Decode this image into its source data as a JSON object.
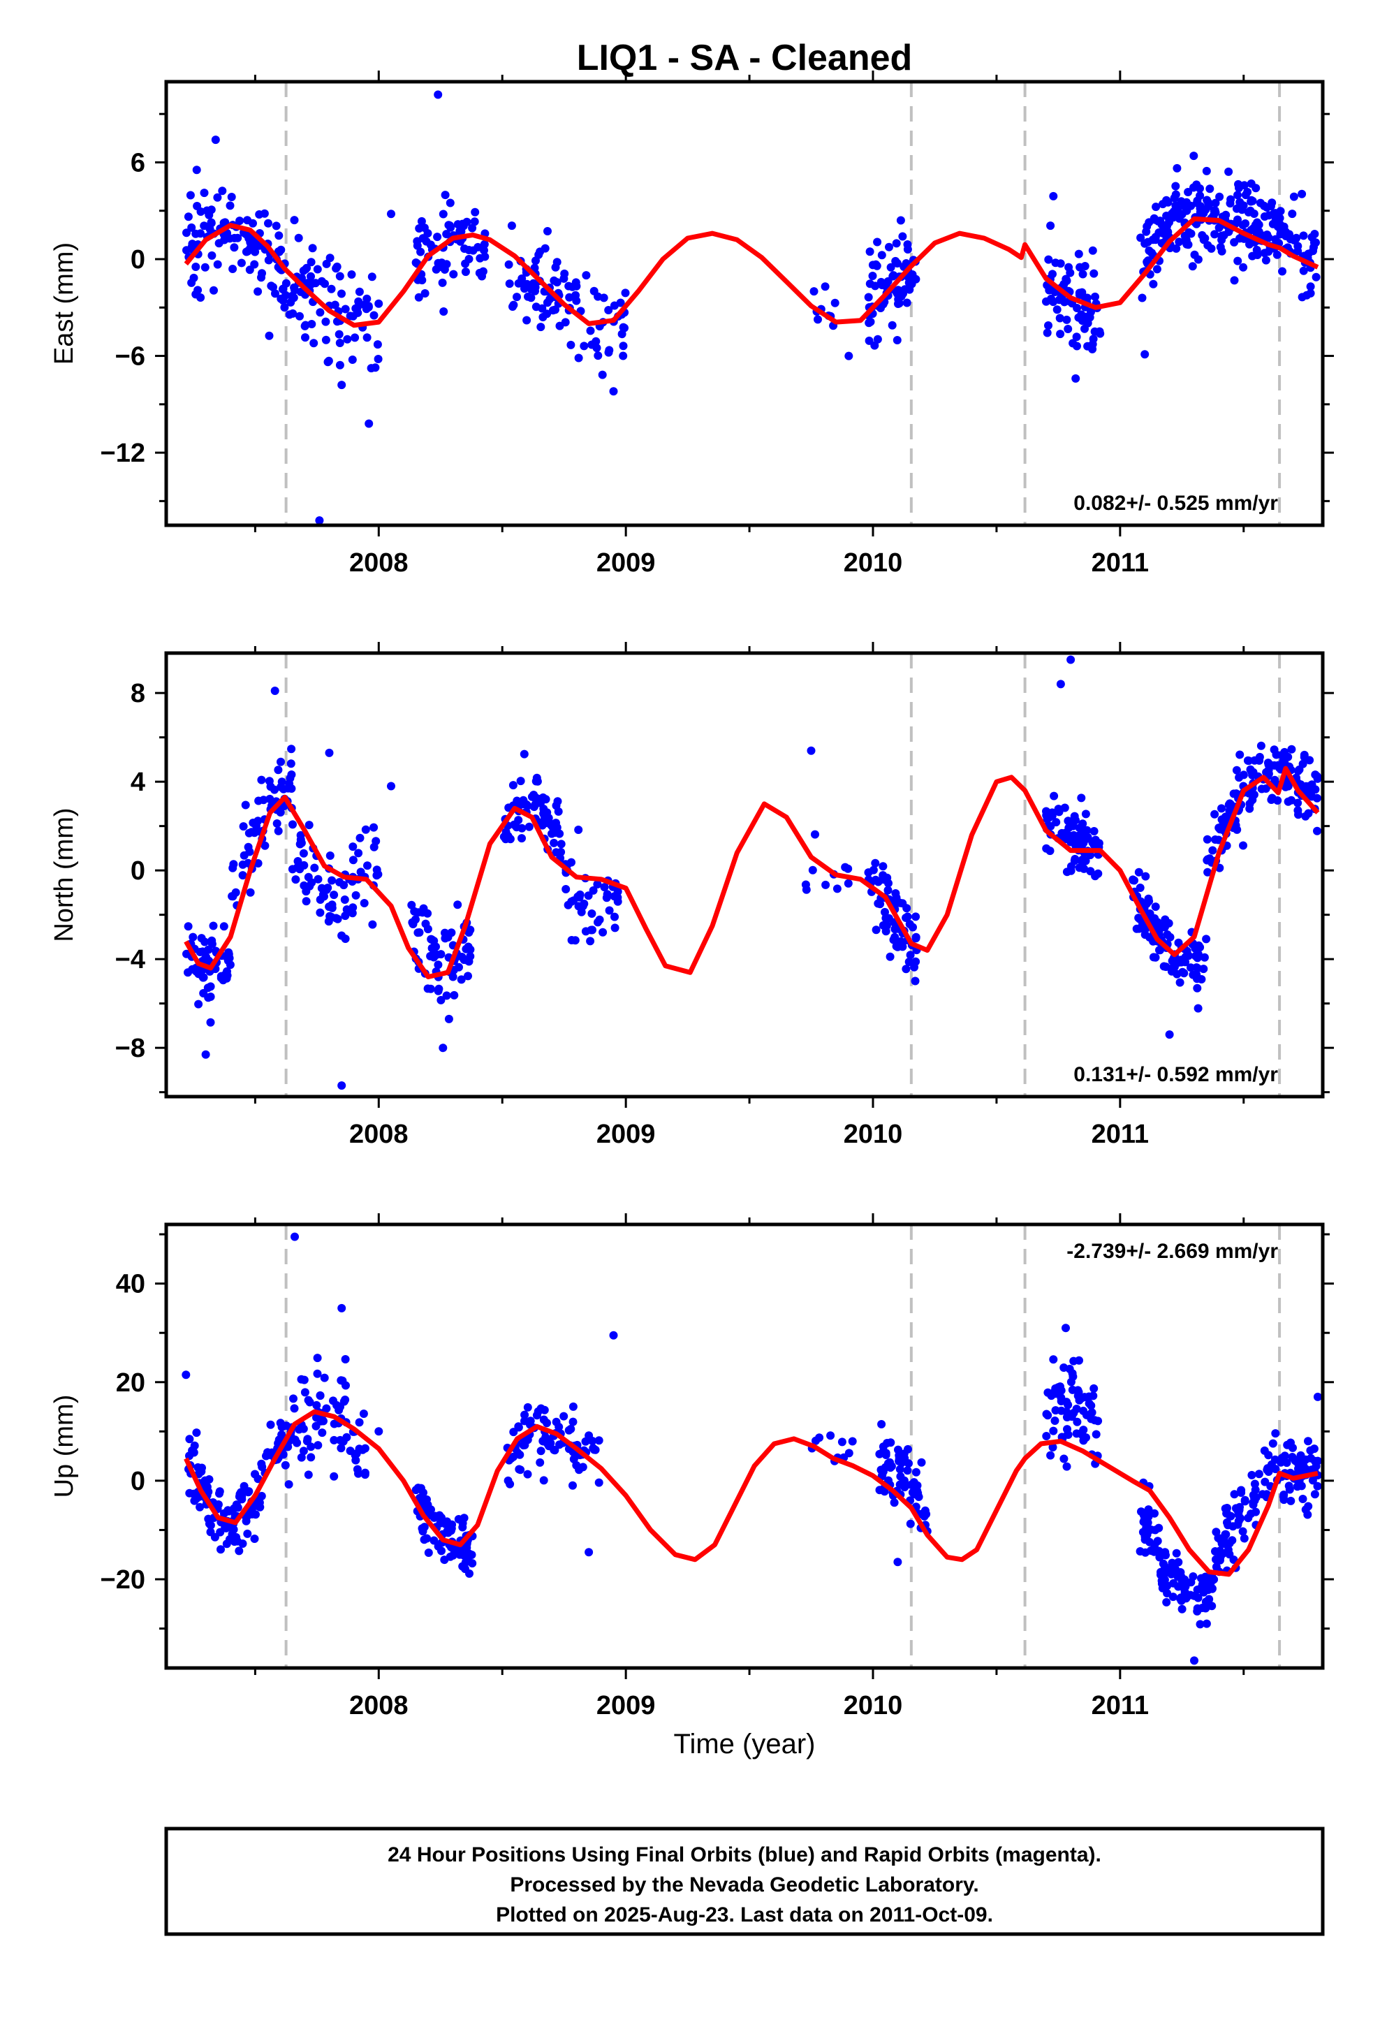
{
  "chart_data": {
    "type": "scatter",
    "title": "LIQ1  - SA - Cleaned",
    "xlabel": "Time (year)",
    "xlim": [
      2007.14,
      2011.82
    ],
    "x_ticks": [
      2008,
      2009,
      2010,
      2011
    ],
    "x_tick_labels": [
      "2008",
      "2009",
      "2010",
      "2011"
    ],
    "event_lines": [
      2007.625,
      2010.155,
      2010.615,
      2011.645
    ],
    "colors": {
      "data": "#0000ff",
      "model": "#ff0000",
      "event": "#c0c0c0"
    },
    "grid": false,
    "panels": [
      {
        "name": "east",
        "ylabel": "East (mm)",
        "ylim": [
          -16.5,
          11
        ],
        "y_ticks": [
          -12,
          -6,
          0,
          6
        ],
        "y_tick_labels": [
          "−12",
          "−6",
          "0",
          "6"
        ],
        "rate_label": "0.082+/- 0.525 mm/yr",
        "rate_position": "bottom-right",
        "model_line": {
          "x": [
            2007.22,
            2007.3,
            2007.4,
            2007.48,
            2007.55,
            2007.62,
            2007.7,
            2007.8,
            2007.9,
            2008.0,
            2008.1,
            2008.2,
            2008.3,
            2008.38,
            2008.45,
            2008.55,
            2008.65,
            2008.75,
            2008.85,
            2008.95,
            2009.05,
            2009.15,
            2009.25,
            2009.35,
            2009.45,
            2009.55,
            2009.65,
            2009.75,
            2009.85,
            2009.95,
            2010.05,
            2010.15,
            2010.25,
            2010.35,
            2010.45,
            2010.55,
            2010.6,
            2010.615,
            2010.7,
            2010.8,
            2010.9,
            2011.0,
            2011.1,
            2011.2,
            2011.3,
            2011.4,
            2011.5,
            2011.6,
            2011.645,
            2011.7,
            2011.8
          ],
          "y": [
            -0.3,
            1.2,
            2.1,
            1.8,
            0.8,
            -0.6,
            -1.8,
            -3.2,
            -4.1,
            -3.9,
            -2.0,
            0.2,
            1.3,
            1.5,
            1.2,
            0.2,
            -1.3,
            -2.8,
            -4.0,
            -3.8,
            -2.0,
            0.0,
            1.3,
            1.6,
            1.2,
            0.1,
            -1.4,
            -2.9,
            -3.9,
            -3.8,
            -2.2,
            -0.5,
            1.0,
            1.6,
            1.3,
            0.6,
            0.1,
            0.9,
            -1.2,
            -2.4,
            -3.0,
            -2.7,
            -0.9,
            1.1,
            2.5,
            2.4,
            1.6,
            0.9,
            0.7,
            0.2,
            -0.5
          ]
        },
        "clusters": [
          {
            "x": [
              2007.22,
              2007.62
            ],
            "center": [
              0.3,
              2.2,
              1.2,
              -0.8
            ],
            "spread": 2.0,
            "count": 110
          },
          {
            "x": [
              2007.62,
              2008.0
            ],
            "center": [
              -0.8,
              -2.2,
              -3.8,
              -4.2
            ],
            "spread": 2.4,
            "count": 85
          },
          {
            "x": [
              2008.15,
              2008.43
            ],
            "center": [
              0.2,
              1.2,
              1.4
            ],
            "spread": 1.8,
            "count": 70
          },
          {
            "x": [
              2008.52,
              2009.0
            ],
            "center": [
              -0.6,
              -2.2,
              -3.8,
              -4.6
            ],
            "spread": 1.9,
            "count": 95
          },
          {
            "x": [
              2009.72,
              2009.92
            ],
            "center": [
              -2.4,
              -3.6
            ],
            "spread": 1.3,
            "count": 10
          },
          {
            "x": [
              2009.98,
              2010.18
            ],
            "center": [
              -2.6,
              -1.4,
              0.0
            ],
            "spread": 2.0,
            "count": 70
          },
          {
            "x": [
              2010.7,
              2010.92
            ],
            "center": [
              -1.4,
              -2.8,
              -3.4
            ],
            "spread": 2.2,
            "count": 75
          },
          {
            "x": [
              2011.08,
              2011.8
            ],
            "center": [
              0.4,
              2.2,
              2.8,
              2.4,
              1.0,
              0.0
            ],
            "spread": 1.9,
            "count": 260
          }
        ],
        "outliers": [
          [
            2008.24,
            10.2
          ],
          [
            2007.76,
            -16.2
          ],
          [
            2007.96,
            -10.2
          ],
          [
            2007.85,
            -7.8
          ],
          [
            2008.95,
            -8.2
          ],
          [
            2010.82,
            -7.4
          ],
          [
            2011.1,
            -5.9
          ],
          [
            2007.34,
            7.4
          ],
          [
            2008.05,
            2.8
          ],
          [
            2010.73,
            3.9
          ]
        ]
      },
      {
        "name": "north",
        "ylabel": "North (mm)",
        "ylim": [
          -10.2,
          9.8
        ],
        "y_ticks": [
          -8,
          -4,
          0,
          4,
          8
        ],
        "y_tick_labels": [
          "−8",
          "−4",
          "0",
          "4",
          "8"
        ],
        "rate_label": "0.131+/- 0.592 mm/yr",
        "rate_position": "bottom-right",
        "model_line": {
          "x": [
            2007.22,
            2007.27,
            2007.32,
            2007.4,
            2007.48,
            2007.56,
            2007.62,
            2007.7,
            2007.78,
            2007.86,
            2007.95,
            2008.05,
            2008.12,
            2008.2,
            2008.28,
            2008.35,
            2008.45,
            2008.55,
            2008.62,
            2008.7,
            2008.8,
            2008.9,
            2009.0,
            2009.08,
            2009.16,
            2009.26,
            2009.35,
            2009.45,
            2009.56,
            2009.65,
            2009.75,
            2009.85,
            2009.95,
            2010.05,
            2010.12,
            2010.155,
            2010.22,
            2010.3,
            2010.4,
            2010.5,
            2010.56,
            2010.615,
            2010.7,
            2010.8,
            2010.92,
            2011.0,
            2011.08,
            2011.15,
            2011.22,
            2011.3,
            2011.4,
            2011.5,
            2011.58,
            2011.64,
            2011.67,
            2011.72,
            2011.8
          ],
          "y": [
            -3.2,
            -4.2,
            -4.4,
            -3.0,
            0.0,
            2.6,
            3.3,
            1.8,
            0.2,
            -0.3,
            -0.4,
            -1.6,
            -3.5,
            -4.8,
            -4.6,
            -2.5,
            1.2,
            2.8,
            2.4,
            0.6,
            -0.3,
            -0.4,
            -0.8,
            -2.6,
            -4.3,
            -4.6,
            -2.5,
            0.8,
            3.0,
            2.4,
            0.6,
            -0.2,
            -0.4,
            -1.2,
            -2.6,
            -3.3,
            -3.6,
            -2.0,
            1.6,
            4.0,
            4.2,
            3.6,
            1.8,
            0.9,
            0.9,
            0.0,
            -1.7,
            -3.1,
            -3.8,
            -3.0,
            0.8,
            3.6,
            4.2,
            3.5,
            4.6,
            3.6,
            2.6
          ]
        },
        "clusters": [
          {
            "x": [
              2007.22,
              2007.4
            ],
            "center": [
              -3.4,
              -4.6,
              -4.0
            ],
            "spread": 1.1,
            "count": 65
          },
          {
            "x": [
              2007.4,
              2007.65
            ],
            "center": [
              -0.5,
              2.6,
              3.6
            ],
            "spread": 1.3,
            "count": 60
          },
          {
            "x": [
              2007.65,
              2008.0
            ],
            "center": [
              0.8,
              -1.5,
              0.2
            ],
            "spread": 1.8,
            "count": 75
          },
          {
            "x": [
              2008.13,
              2008.38
            ],
            "center": [
              -2.5,
              -4.8,
              -3.0
            ],
            "spread": 1.5,
            "count": 70
          },
          {
            "x": [
              2008.5,
              2008.75
            ],
            "center": [
              1.8,
              3.2,
              1.6
            ],
            "spread": 1.3,
            "count": 75
          },
          {
            "x": [
              2008.75,
              2008.98
            ],
            "center": [
              -0.2,
              -1.4,
              -0.6
            ],
            "spread": 1.6,
            "count": 45
          },
          {
            "x": [
              2009.72,
              2009.92
            ],
            "center": [
              0.2,
              -0.4
            ],
            "spread": 0.9,
            "count": 10
          },
          {
            "x": [
              2009.98,
              2010.18
            ],
            "center": [
              -0.6,
              -2.0,
              -3.6
            ],
            "spread": 1.2,
            "count": 70
          },
          {
            "x": [
              2010.7,
              2010.92
            ],
            "center": [
              2.6,
              1.2,
              0.6
            ],
            "spread": 1.2,
            "count": 75
          },
          {
            "x": [
              2011.05,
              2011.35
            ],
            "center": [
              -1.0,
              -3.0,
              -4.4,
              -3.8
            ],
            "spread": 1.0,
            "count": 110
          },
          {
            "x": [
              2011.35,
              2011.8
            ],
            "center": [
              0.8,
              3.6,
              4.4,
              3.6
            ],
            "spread": 1.1,
            "count": 150
          }
        ],
        "outliers": [
          [
            2007.58,
            8.1
          ],
          [
            2007.85,
            -9.7
          ],
          [
            2010.8,
            9.5
          ],
          [
            2010.76,
            8.4
          ],
          [
            2009.75,
            5.4
          ],
          [
            2007.8,
            5.3
          ],
          [
            2007.3,
            -8.3
          ],
          [
            2011.2,
            -7.4
          ],
          [
            2008.26,
            -8.0
          ],
          [
            2008.05,
            3.8
          ]
        ]
      },
      {
        "name": "up",
        "ylabel": "Up (mm)",
        "ylim": [
          -38,
          52
        ],
        "y_ticks": [
          -20,
          0,
          20,
          40
        ],
        "y_tick_labels": [
          "−20",
          "0",
          "20",
          "40"
        ],
        "rate_label": "-2.739+/- 2.669 mm/yr",
        "rate_position": "top-right",
        "model_line": {
          "x": [
            2007.22,
            2007.28,
            2007.35,
            2007.42,
            2007.5,
            2007.58,
            2007.66,
            2007.74,
            2007.82,
            2007.9,
            2008.0,
            2008.1,
            2008.18,
            2008.26,
            2008.33,
            2008.4,
            2008.48,
            2008.56,
            2008.64,
            2008.72,
            2008.8,
            2008.9,
            2009.0,
            2009.1,
            2009.2,
            2009.28,
            2009.36,
            2009.44,
            2009.52,
            2009.6,
            2009.68,
            2009.76,
            2009.84,
            2009.92,
            2010.0,
            2010.08,
            2010.155,
            2010.22,
            2010.3,
            2010.36,
            2010.42,
            2010.5,
            2010.58,
            2010.615,
            2010.68,
            2010.76,
            2010.85,
            2010.95,
            2011.05,
            2011.12,
            2011.2,
            2011.28,
            2011.36,
            2011.44,
            2011.52,
            2011.6,
            2011.645,
            2011.7,
            2011.8
          ],
          "y": [
            4.5,
            -2.0,
            -7.5,
            -8.5,
            -3.0,
            4.5,
            11.5,
            14.0,
            13.0,
            10.5,
            6.5,
            0.0,
            -7.0,
            -12.0,
            -13.0,
            -9.0,
            2.0,
            8.5,
            11.0,
            9.5,
            6.5,
            2.5,
            -3.0,
            -10.0,
            -15.0,
            -16.0,
            -13.0,
            -5.0,
            3.0,
            7.5,
            8.5,
            7.0,
            4.5,
            3.0,
            1.0,
            -2.0,
            -5.5,
            -11.0,
            -15.5,
            -16.0,
            -14.0,
            -6.0,
            2.0,
            4.5,
            7.5,
            8.0,
            6.0,
            3.0,
            0.0,
            -2.0,
            -7.5,
            -14.0,
            -18.5,
            -19.0,
            -14.0,
            -5.0,
            1.5,
            0.5,
            1.5
          ]
        },
        "clusters": [
          {
            "x": [
              2007.22,
              2007.52
            ],
            "center": [
              6.0,
              -5.0,
              -8.0,
              -6.0
            ],
            "spread": 5.0,
            "count": 110
          },
          {
            "x": [
              2007.52,
              2007.65
            ],
            "center": [
              3.0,
              10.0
            ],
            "spread": 5.0,
            "count": 35
          },
          {
            "x": [
              2007.65,
              2007.95
            ],
            "center": [
              12.0,
              13.0,
              8.0
            ],
            "spread": 7.5,
            "count": 70
          },
          {
            "x": [
              2008.15,
              2008.38
            ],
            "center": [
              -4.0,
              -12.0,
              -14.0
            ],
            "spread": 4.0,
            "count": 85
          },
          {
            "x": [
              2008.52,
              2008.9
            ],
            "center": [
              4.0,
              11.0,
              8.0,
              4.0
            ],
            "spread": 4.5,
            "count": 85
          },
          {
            "x": [
              2009.72,
              2009.92
            ],
            "center": [
              8.0,
              6.0
            ],
            "spread": 3.0,
            "count": 10
          },
          {
            "x": [
              2010.02,
              2010.22
            ],
            "center": [
              4.0,
              2.0,
              -6.0
            ],
            "spread": 5.0,
            "count": 70
          },
          {
            "x": [
              2010.7,
              2010.92
            ],
            "center": [
              15.0,
              16.0,
              9.0
            ],
            "spread": 6.5,
            "count": 75
          },
          {
            "x": [
              2011.08,
              2011.38
            ],
            "center": [
              -6.0,
              -18.0,
              -24.0,
              -22.0
            ],
            "spread": 4.5,
            "count": 110
          },
          {
            "x": [
              2011.38,
              2011.8
            ],
            "center": [
              -14.0,
              -4.0,
              2.0,
              2.0
            ],
            "spread": 5.0,
            "count": 140
          }
        ],
        "outliers": [
          [
            2007.66,
            49.5
          ],
          [
            2007.85,
            35.0
          ],
          [
            2010.78,
            31.0
          ],
          [
            2008.95,
            29.5
          ],
          [
            2011.3,
            -36.5
          ],
          [
            2008.85,
            -14.5
          ],
          [
            2007.22,
            21.5
          ],
          [
            2010.1,
            -16.5
          ],
          [
            2008.0,
            10.0
          ],
          [
            2011.8,
            17.0
          ]
        ]
      }
    ],
    "caption": [
      "24 Hour Positions Using Final Orbits (blue) and Rapid Orbits (magenta).",
      "Processed by the Nevada Geodetic Laboratory.",
      "Plotted on 2025-Aug-23. Last data on 2011-Oct-09."
    ]
  }
}
